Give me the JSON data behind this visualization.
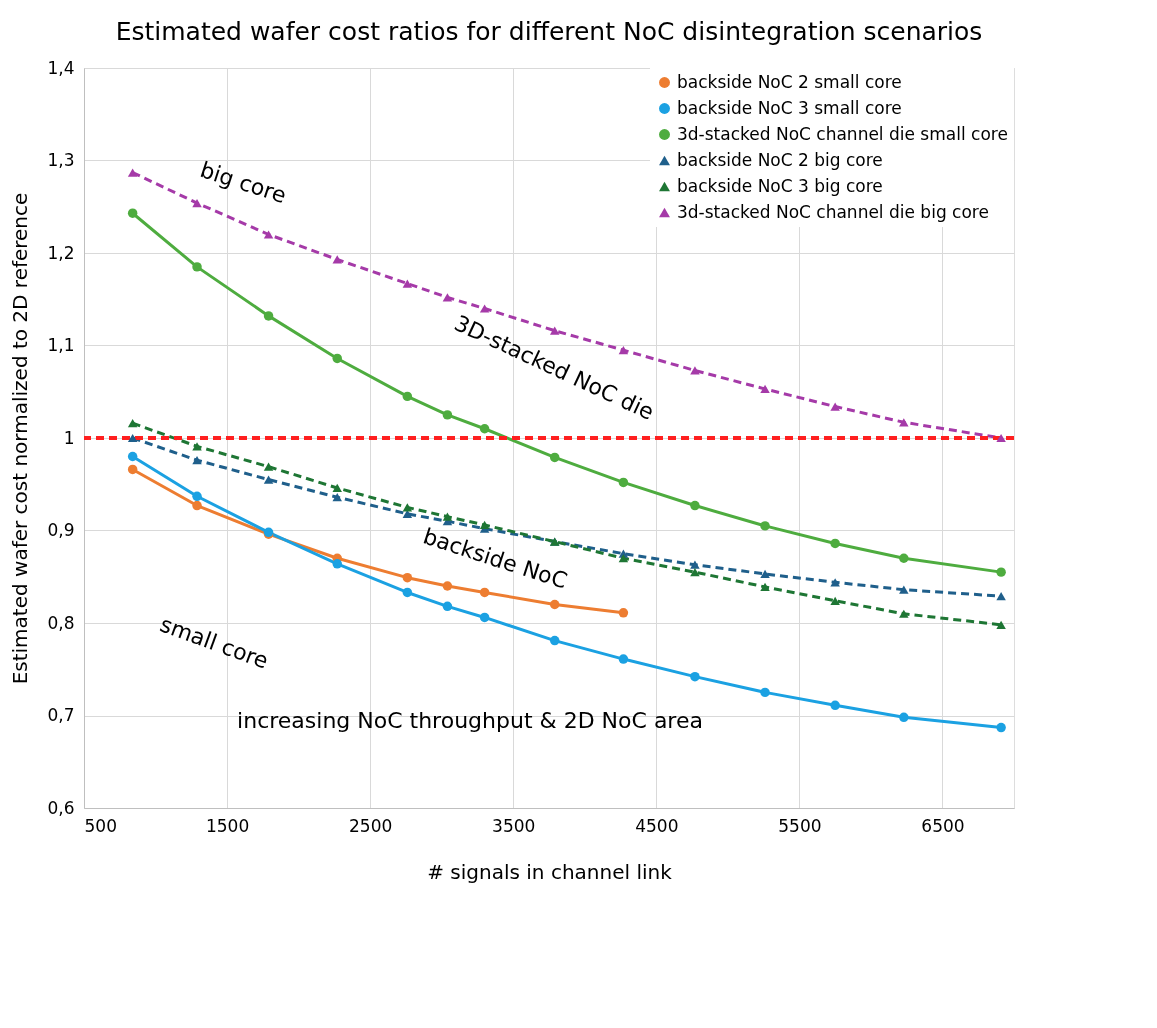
{
  "chart_data": {
    "type": "line",
    "title": "Estimated wafer cost ratios for different NoC disintegration scenarios",
    "xlabel": "# signals in channel link",
    "ylabel": "Estimated wafer cost normalized to 2D reference",
    "x": [
      840,
      1290,
      1790,
      2270,
      2760,
      3040,
      3300,
      3790,
      4270,
      4770,
      5260,
      5750,
      6230,
      6910
    ],
    "series": [
      {
        "name": "backside NoC 2 small core",
        "color": "#ed7d31",
        "marker": "circle",
        "line_style": "solid",
        "values": [
          0.966,
          0.927,
          0.896,
          0.87,
          0.849,
          0.84,
          0.833,
          0.82,
          0.811,
          null,
          null,
          null,
          null,
          null
        ]
      },
      {
        "name": "backside NoC 3 small core",
        "color": "#1ba1e2",
        "marker": "circle",
        "line_style": "solid",
        "values": [
          0.98,
          0.937,
          0.898,
          0.864,
          0.833,
          0.818,
          0.806,
          0.781,
          0.761,
          0.742,
          0.725,
          0.711,
          0.698,
          0.687
        ]
      },
      {
        "name": "3d-stacked NoC channel die small core",
        "color": "#4eac3f",
        "marker": "circle",
        "line_style": "solid",
        "values": [
          1.243,
          1.185,
          1.132,
          1.086,
          1.045,
          1.025,
          1.01,
          0.979,
          0.952,
          0.927,
          0.905,
          0.886,
          0.87,
          0.855
        ]
      },
      {
        "name": "backside NoC 2 big core",
        "color": "#1f5f8b",
        "marker": "triangle",
        "line_style": "dashed",
        "values": [
          1.0,
          0.976,
          0.955,
          0.936,
          0.918,
          0.91,
          0.902,
          0.888,
          0.875,
          0.863,
          0.853,
          0.844,
          0.836,
          0.829
        ]
      },
      {
        "name": "backside NoC 3 big core",
        "color": "#1e7634",
        "marker": "triangle",
        "line_style": "dashed",
        "values": [
          1.016,
          0.991,
          0.969,
          0.946,
          0.925,
          0.915,
          0.906,
          0.888,
          0.87,
          0.855,
          0.839,
          0.824,
          0.81,
          0.798
        ]
      },
      {
        "name": "3d-stacked NoC channel die big core",
        "color": "#a53aa8",
        "marker": "triangle",
        "line_style": "dashed",
        "values": [
          1.287,
          1.254,
          1.22,
          1.193,
          1.167,
          1.152,
          1.14,
          1.116,
          1.095,
          1.073,
          1.053,
          1.034,
          1.017,
          1.0
        ]
      }
    ],
    "xlim": [
      500,
      7000
    ],
    "xticks": [
      500,
      1500,
      2500,
      3500,
      4500,
      5500,
      6500
    ],
    "ylim": [
      0.6,
      1.4
    ],
    "yticks": [
      {
        "value": 0.6,
        "label": "0,6"
      },
      {
        "value": 0.7,
        "label": "0,7"
      },
      {
        "value": 0.8,
        "label": "0,8"
      },
      {
        "value": 0.9,
        "label": "0,9"
      },
      {
        "value": 1.0,
        "label": "1"
      },
      {
        "value": 1.1,
        "label": "1,1"
      },
      {
        "value": 1.2,
        "label": "1,2"
      },
      {
        "value": 1.3,
        "label": "1,3"
      },
      {
        "value": 1.4,
        "label": "1,4"
      }
    ],
    "ref_lines": [
      {
        "axis": "y",
        "value": 1.0,
        "color": "#ff1f1f",
        "line_style": "dashed"
      }
    ],
    "annotations": [
      "big core",
      "3D-stacked NoC die",
      "backside NoC",
      "small core",
      "increasing NoC throughput & 2D NoC area"
    ],
    "grid": true,
    "legend": "top right"
  }
}
